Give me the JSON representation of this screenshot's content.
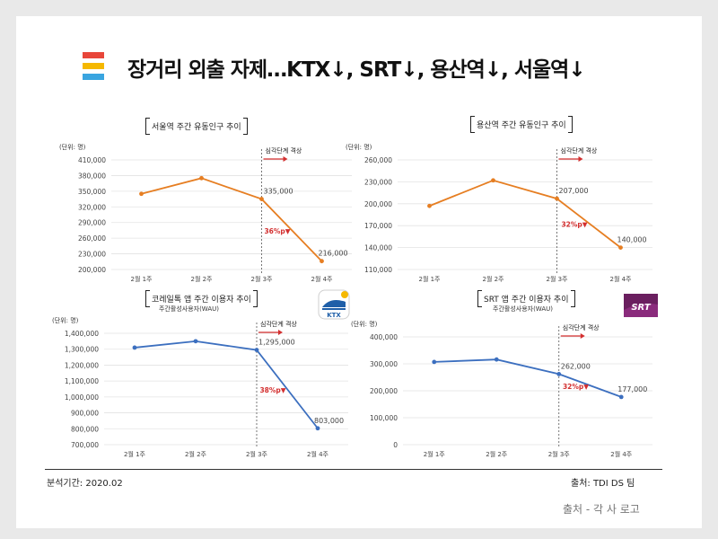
{
  "title": "장거리 외출 자제…KTX↓, SRT↓, 용산역↓, 서울역↓",
  "logo_colors": [
    "#e8463a",
    "#f5b800",
    "#3aa5e0"
  ],
  "footer": {
    "period": "분석기간: 2020.02",
    "source": "출처: TDI DS 팀"
  },
  "source_note": "출처 - 각 사 로고",
  "app_icons": {
    "ktx_text": "KTX",
    "srt_text": "SRT"
  },
  "chart_data": [
    {
      "type": "line",
      "title": "서울역 주간 유동인구 추이",
      "subtitle": "",
      "unit": "(단위: 명)",
      "color": "#e67e22",
      "categories": [
        "2월 1주",
        "2월 2주",
        "2월 3주",
        "2월 4주"
      ],
      "values": [
        345000,
        375000,
        335000,
        216000
      ],
      "ylim": [
        200000,
        410000
      ],
      "yticks": [
        200000,
        230000,
        260000,
        290000,
        320000,
        350000,
        380000,
        410000
      ],
      "ytick_labels": [
        "200,000",
        "230,000",
        "260,000",
        "290,000",
        "320,000",
        "350,000",
        "380,000",
        "410,000"
      ],
      "point_labels": [
        "",
        "",
        "335,000",
        "216,000"
      ],
      "marker_label": "심각단계 격상",
      "marker_index": 2,
      "change_label": "36%p▼"
    },
    {
      "type": "line",
      "title": "용산역 주간 유동인구 추이",
      "subtitle": "",
      "unit": "(단위: 명)",
      "color": "#e67e22",
      "categories": [
        "2월 1주",
        "2월 2주",
        "2월 3주",
        "2월 4주"
      ],
      "values": [
        197000,
        232000,
        207000,
        140000
      ],
      "ylim": [
        110000,
        260000
      ],
      "yticks": [
        110000,
        140000,
        170000,
        200000,
        230000,
        260000
      ],
      "ytick_labels": [
        "110,000",
        "140,000",
        "170,000",
        "200,000",
        "230,000",
        "260,000"
      ],
      "point_labels": [
        "",
        "",
        "207,000",
        "140,000"
      ],
      "marker_label": "심각단계 격상",
      "marker_index": 2,
      "change_label": "32%p▼"
    },
    {
      "type": "line",
      "title": "코레일톡 앱 주간 이용자 추이",
      "subtitle": "주간활성사용자(WAU)",
      "unit": "(단위: 명)",
      "color": "#3c6fbf",
      "categories": [
        "2월 1주",
        "2월 2주",
        "2월 3주",
        "2월 4주"
      ],
      "values": [
        1310000,
        1350000,
        1295000,
        803000
      ],
      "ylim": [
        700000,
        1400000
      ],
      "yticks": [
        700000,
        800000,
        900000,
        1000000,
        1100000,
        1200000,
        1300000,
        1400000
      ],
      "ytick_labels": [
        "700,000",
        "800,000",
        "900,000",
        "1,000,000",
        "1,100,000",
        "1,200,000",
        "1,300,000",
        "1,400,000"
      ],
      "point_labels": [
        "",
        "",
        "1,295,000",
        "803,000"
      ],
      "marker_label": "심각단계 격상",
      "marker_index": 2,
      "change_label": "38%p▼"
    },
    {
      "type": "line",
      "title": "SRT 앱 주간 이용자 추이",
      "subtitle": "주간활성사용자(WAU)",
      "unit": "(단위: 명)",
      "color": "#3c6fbf",
      "categories": [
        "2월 1주",
        "2월 2주",
        "2월 3주",
        "2월 4주"
      ],
      "values": [
        307000,
        316000,
        262000,
        177000
      ],
      "ylim": [
        0,
        400000
      ],
      "yticks": [
        0,
        100000,
        200000,
        300000,
        400000
      ],
      "ytick_labels": [
        "0",
        "100,000",
        "200,000",
        "300,000",
        "400,000"
      ],
      "point_labels": [
        "",
        "",
        "262,000",
        "177,000"
      ],
      "marker_label": "심각단계 격상",
      "marker_index": 2,
      "change_label": "32%p▼"
    }
  ]
}
